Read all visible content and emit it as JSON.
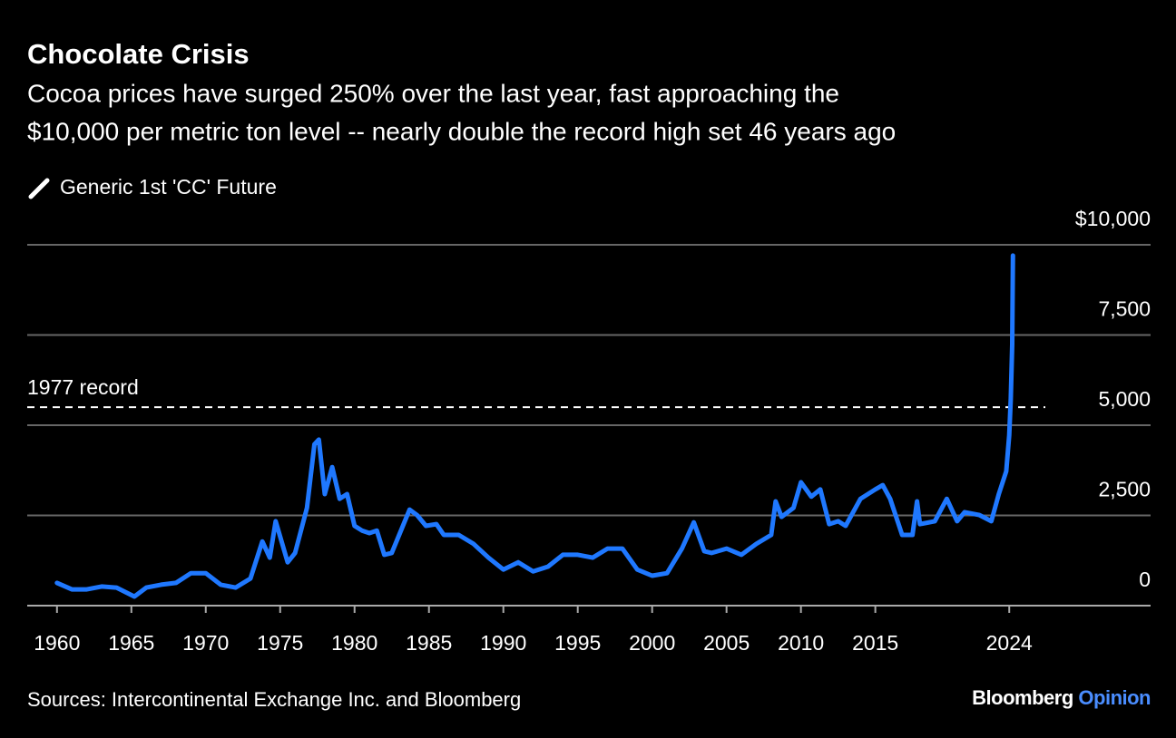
{
  "chart_data": {
    "type": "line",
    "title": "Chocolate Crisis",
    "subtitle": [
      "Cocoa prices have surged 250% over the last year, fast approaching the",
      "$10,000 per metric ton level -- nearly double the record high set 46 years ago"
    ],
    "source": "Sources: Intercontinental Exchange Inc. and Bloomberg",
    "x": [
      1960,
      1961,
      1962,
      1963,
      1964,
      1965.2,
      1966,
      1967,
      1968,
      1969,
      1970,
      1971,
      1972,
      1973,
      1973.8,
      1974.3,
      1974.7,
      1975.5,
      1976,
      1976.8,
      1977.3,
      1977.6,
      1978,
      1978.5,
      1979,
      1979.5,
      1980,
      1980.5,
      1981,
      1981.5,
      1982,
      1982.5,
      1983,
      1983.7,
      1984.2,
      1984.8,
      1985.5,
      1986,
      1987,
      1988,
      1989,
      1990,
      1991,
      1992,
      1993,
      1994,
      1995,
      1996,
      1997,
      1998,
      1999,
      2000,
      2001,
      2002,
      2002.8,
      2003.5,
      2004,
      2005,
      2006,
      2007,
      2008,
      2008.3,
      2008.7,
      2009.5,
      2010,
      2010.7,
      2011.3,
      2011.9,
      2012.5,
      2013,
      2014,
      2015,
      2015.5,
      2016,
      2016.8,
      2017.5,
      2017.8,
      2018,
      2019,
      2019.8,
      2020.5,
      2021,
      2022,
      2022.8,
      2023.3,
      2023.8,
      2024.0,
      2024.1,
      2024.2,
      2024.25
    ],
    "series": [
      {
        "name": "Generic 1st 'CC' Future",
        "color": "#1f78ff",
        "values": [
          630,
          450,
          450,
          530,
          500,
          250,
          500,
          580,
          630,
          900,
          900,
          580,
          500,
          750,
          1780,
          1330,
          2340,
          1200,
          1460,
          2710,
          4470,
          4600,
          3090,
          3840,
          2960,
          3090,
          2210,
          2080,
          2010,
          2080,
          1410,
          1460,
          1960,
          2660,
          2510,
          2210,
          2260,
          1960,
          1960,
          1710,
          1330,
          1000,
          1200,
          950,
          1080,
          1410,
          1410,
          1330,
          1580,
          1580,
          1000,
          830,
          900,
          1580,
          2310,
          1510,
          1460,
          1580,
          1410,
          1710,
          1960,
          2890,
          2460,
          2710,
          3420,
          3020,
          3220,
          2260,
          2340,
          2210,
          2960,
          3220,
          3340,
          2960,
          1960,
          1960,
          2890,
          2260,
          2340,
          2960,
          2340,
          2590,
          2510,
          2340,
          3090,
          3720,
          4720,
          5730,
          7240,
          9700
        ]
      }
    ],
    "annotations": [
      {
        "text": "1977 record",
        "value": 5500
      }
    ],
    "xlim": [
      1958,
      2033.5
    ],
    "xticks": [
      1960,
      1965,
      1970,
      1975,
      1980,
      1985,
      1990,
      1995,
      2000,
      2005,
      2010,
      2015,
      2024
    ],
    "ylim": [
      0,
      10000
    ],
    "yticks": [
      0,
      {
        "value": 2500,
        "label": "2,500"
      },
      {
        "value": 5000,
        "label": "5,000"
      },
      {
        "value": 7500,
        "label": "7,500"
      },
      {
        "value": 10000,
        "label": "$10,000"
      }
    ],
    "grid": true
  },
  "branding": {
    "name": "Bloomberg",
    "product": "Opinion"
  }
}
